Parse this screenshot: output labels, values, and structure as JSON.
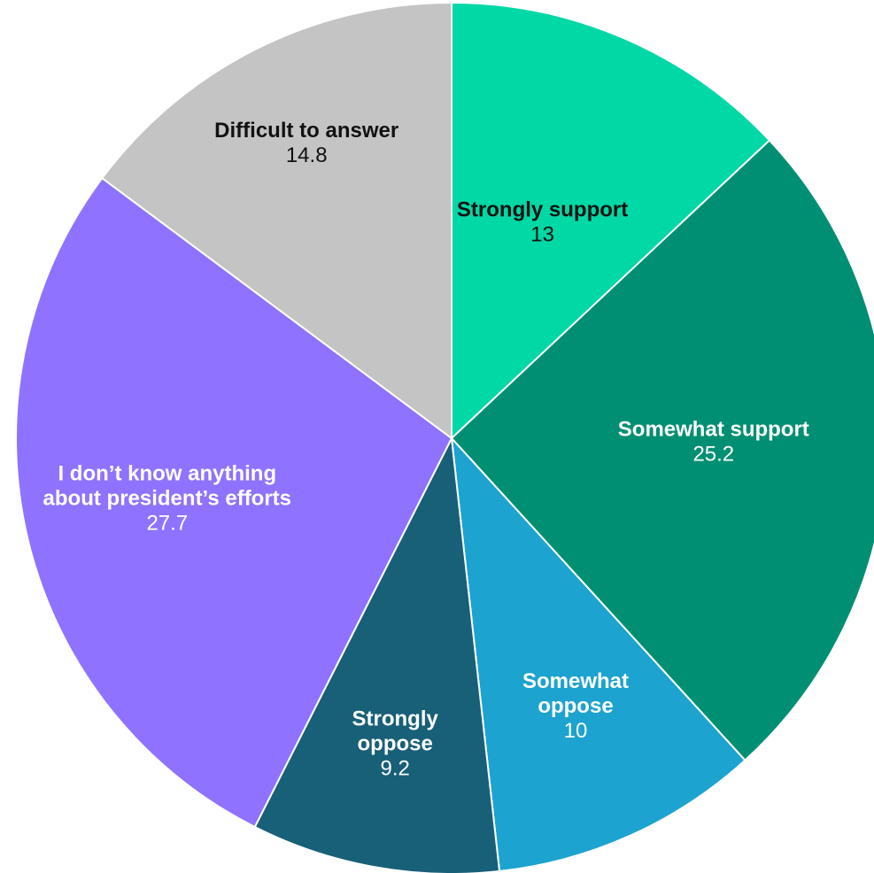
{
  "chart_data": {
    "type": "pie",
    "start_angle_deg": 0,
    "direction": "clockwise",
    "slices": [
      {
        "label": "Strongly support",
        "value": 13,
        "display": "13",
        "color": "#00d8a5",
        "text_color": "#111111"
      },
      {
        "label": "Somewhat support",
        "value": 25.2,
        "display": "25.2",
        "color": "#008f72",
        "text_color": "#ffffff"
      },
      {
        "label": "Somewhat oppose",
        "value": 10,
        "display": "10",
        "color": "#1ca3d0",
        "text_color": "#ffffff"
      },
      {
        "label": "Strongly oppose",
        "value": 9.2,
        "display": "9.2",
        "color": "#185f78",
        "text_color": "#ffffff"
      },
      {
        "label": "I don’t know anything about president’s efforts",
        "value": 27.7,
        "display": "27.7",
        "color": "#8f72ff",
        "text_color": "#ffffff"
      },
      {
        "label": "Difficult to answer",
        "value": 14.8,
        "display": "14.8",
        "color": "#c4c4c4",
        "text_color": "#111111"
      }
    ]
  }
}
